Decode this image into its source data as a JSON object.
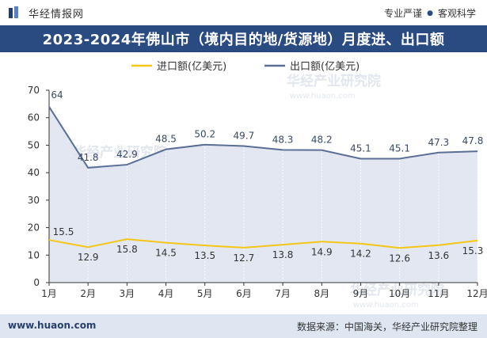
{
  "header": {
    "brand_name": "华经情报网",
    "slogan_left": "专业严谨",
    "slogan_right": "客观科学"
  },
  "title": "2023-2024年佛山市（境内目的地/货源地）月度进、出口额",
  "footer": {
    "url": "www.huaon.com",
    "source": "数据来源：中国海关，华经产业研究院整理"
  },
  "watermark": "华经产业研究院",
  "watermark_url": "www.huaon.com",
  "colors": {
    "import": "#f5c518",
    "export": "#5a6f96",
    "area": "#dde3ee",
    "title_bg": "#2a4a82"
  },
  "chart_data": {
    "type": "line",
    "categories": [
      "1月",
      "2月",
      "3月",
      "4月",
      "5月",
      "6月",
      "7月",
      "8月",
      "9月",
      "10月",
      "11月",
      "12月"
    ],
    "series": [
      {
        "name": "进口额(亿美元)",
        "values": [
          15.5,
          12.9,
          15.8,
          14.5,
          13.5,
          12.7,
          13.8,
          14.9,
          14.2,
          12.6,
          13.6,
          15.3
        ]
      },
      {
        "name": "出口额(亿美元)",
        "values": [
          64,
          41.8,
          42.9,
          48.5,
          50.2,
          49.7,
          48.3,
          48.2,
          45.1,
          45.1,
          47.3,
          47.8
        ]
      }
    ],
    "ylim": [
      0,
      70
    ],
    "yticks": [
      0,
      10,
      20,
      30,
      40,
      50,
      60,
      70
    ],
    "legend_position": "top-center",
    "grid": "vertical"
  }
}
